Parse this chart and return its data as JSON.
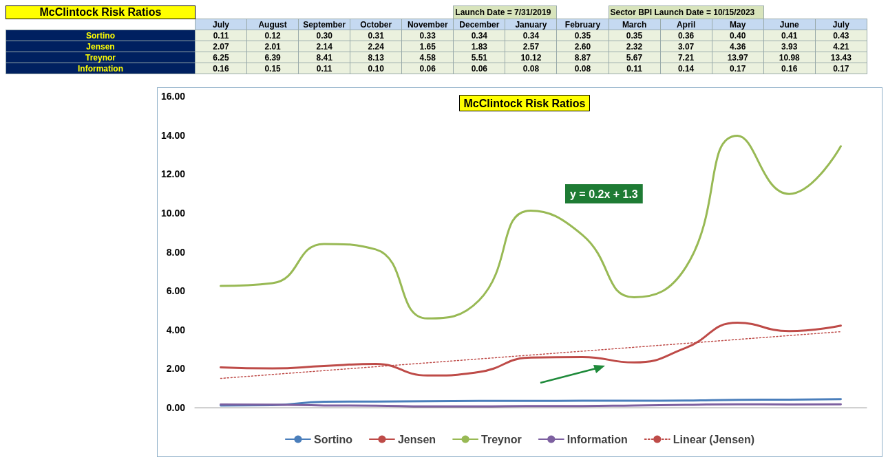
{
  "chart_data": {
    "type": "line",
    "title": "McClintock Risk Ratios",
    "categories": [
      "July",
      "August",
      "September",
      "October",
      "November",
      "December",
      "January",
      "February",
      "March",
      "April",
      "May",
      "June",
      "July"
    ],
    "series": [
      {
        "name": "Sortino",
        "color": "#4a7ebb",
        "values": [
          0.11,
          0.12,
          0.3,
          0.31,
          0.33,
          0.34,
          0.34,
          0.35,
          0.35,
          0.36,
          0.4,
          0.41,
          0.43
        ],
        "value_labels": [
          "0.11",
          "0.12",
          "0.30",
          "0.31",
          "0.33",
          "0.34",
          "0.34",
          "0.35",
          "0.35",
          "0.36",
          "0.40",
          "0.41",
          "0.43"
        ]
      },
      {
        "name": "Jensen",
        "color": "#be4b48",
        "values": [
          2.07,
          2.01,
          2.14,
          2.24,
          1.65,
          1.83,
          2.57,
          2.6,
          2.32,
          3.07,
          4.36,
          3.93,
          4.21
        ],
        "value_labels": [
          "2.07",
          "2.01",
          "2.14",
          "2.24",
          "1.65",
          "1.83",
          "2.57",
          "2.60",
          "2.32",
          "3.07",
          "4.36",
          "3.93",
          "4.21"
        ]
      },
      {
        "name": "Treynor",
        "color": "#98b954",
        "values": [
          6.25,
          6.39,
          8.41,
          8.13,
          4.58,
          5.51,
          10.12,
          8.87,
          5.67,
          7.21,
          13.97,
          10.98,
          13.43
        ],
        "value_labels": [
          "6.25",
          "6.39",
          "8.41",
          "8.13",
          "4.58",
          "5.51",
          "10.12",
          "8.87",
          "5.67",
          "7.21",
          "13.97",
          "10.98",
          "13.43"
        ]
      },
      {
        "name": "Information",
        "color": "#7d60a0",
        "values": [
          0.16,
          0.15,
          0.11,
          0.1,
          0.06,
          0.06,
          0.08,
          0.08,
          0.11,
          0.14,
          0.17,
          0.16,
          0.17
        ],
        "value_labels": [
          "0.16",
          "0.15",
          "0.11",
          "0.10",
          "0.06",
          "0.06",
          "0.08",
          "0.08",
          "0.11",
          "0.14",
          "0.17",
          "0.16",
          "0.17"
        ]
      },
      {
        "name": "Linear (Jensen)",
        "color": "#be4b48",
        "line_style": "dotted",
        "values": [
          1.5,
          1.7,
          1.9,
          2.1,
          2.3,
          2.5,
          2.7,
          2.9,
          3.1,
          3.3,
          3.5,
          3.7,
          3.9
        ]
      }
    ],
    "ylim": [
      0,
      16
    ],
    "yticks": [
      {
        "value": 0,
        "label": "0.00"
      },
      {
        "value": 2,
        "label": "2.00"
      },
      {
        "value": 4,
        "label": "4.00"
      },
      {
        "value": 6,
        "label": "6.00"
      },
      {
        "value": 8,
        "label": "8.00"
      },
      {
        "value": 10,
        "label": "10.00"
      },
      {
        "value": 12,
        "label": "12.00"
      },
      {
        "value": 14,
        "label": "14.00"
      },
      {
        "value": 16,
        "label": "16.00"
      }
    ],
    "tick_labels": "y",
    "grid": false,
    "legend": "bottom",
    "marker": "none",
    "line_style": "solid",
    "annotations": [
      "Launch Date = 7/31/2019",
      "Sector BPI Launch Date = 10/15/2023",
      "y = 0.2x + 1.3"
    ]
  }
}
